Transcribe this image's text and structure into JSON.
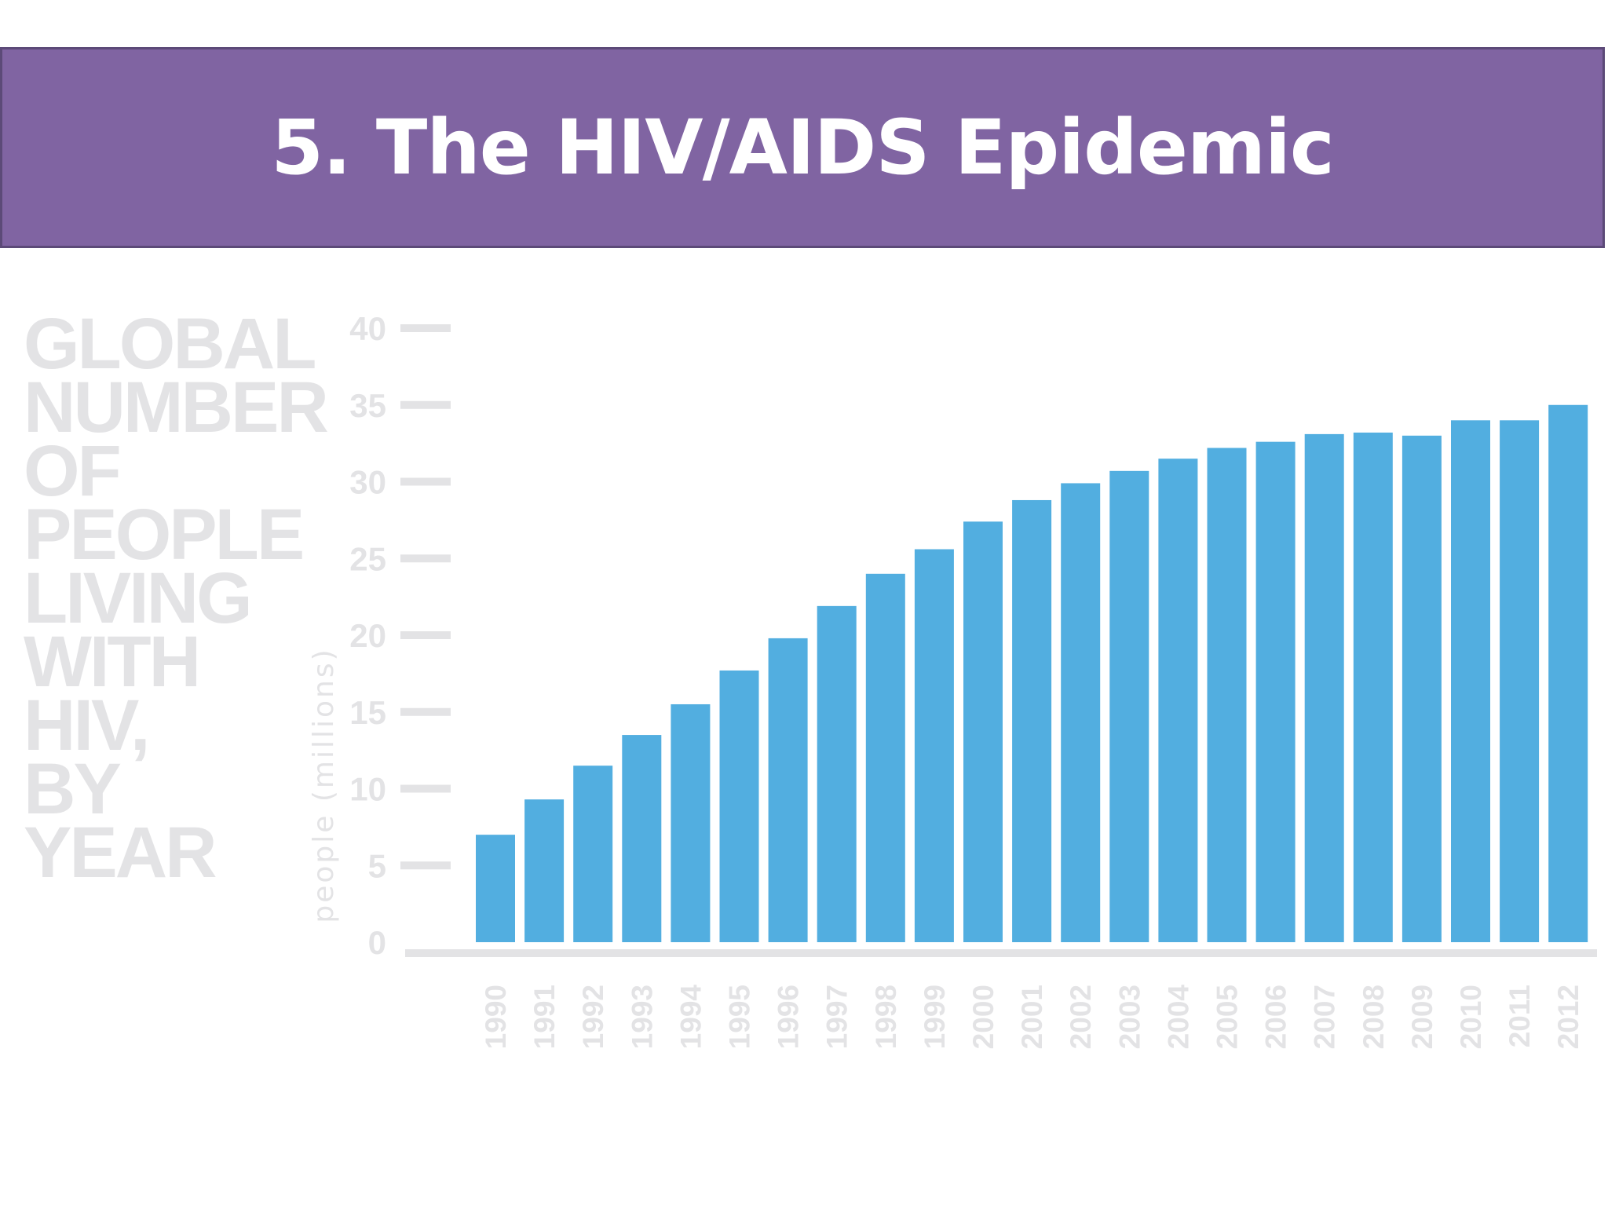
{
  "slide": {
    "title": "5. The HIV/AIDS Epidemic"
  },
  "colors": {
    "banner": "#8064a2",
    "bar": "#52aee0",
    "faded_text": "#e3e3e5"
  },
  "chart_data": {
    "type": "bar",
    "title_lines": [
      "GLOBAL",
      "NUMBER",
      "OF",
      "PEOPLE",
      "LIVING",
      "WITH",
      "HIV,",
      "BY",
      "YEAR"
    ],
    "ylabel": "people (millions)",
    "xlabel": "",
    "ylim": [
      0,
      40
    ],
    "yticks": [
      0,
      5,
      10,
      15,
      20,
      25,
      30,
      35,
      40
    ],
    "grid": false,
    "categories": [
      "1990",
      "1991",
      "1992",
      "1993",
      "1994",
      "1995",
      "1996",
      "1997",
      "1998",
      "1999",
      "2000",
      "2001",
      "2002",
      "2003",
      "2004",
      "2005",
      "2006",
      "2007",
      "2008",
      "2009",
      "2010",
      "2011",
      "2012"
    ],
    "series": [
      {
        "values": [
          7.0,
          9.3,
          11.5,
          13.5,
          15.5,
          17.7,
          19.8,
          21.9,
          24.0,
          25.6,
          27.4,
          28.8,
          29.9,
          30.7,
          31.5,
          32.2,
          32.6,
          33.1,
          33.2,
          33.0,
          34.0,
          34.0,
          35.0
        ]
      }
    ]
  }
}
